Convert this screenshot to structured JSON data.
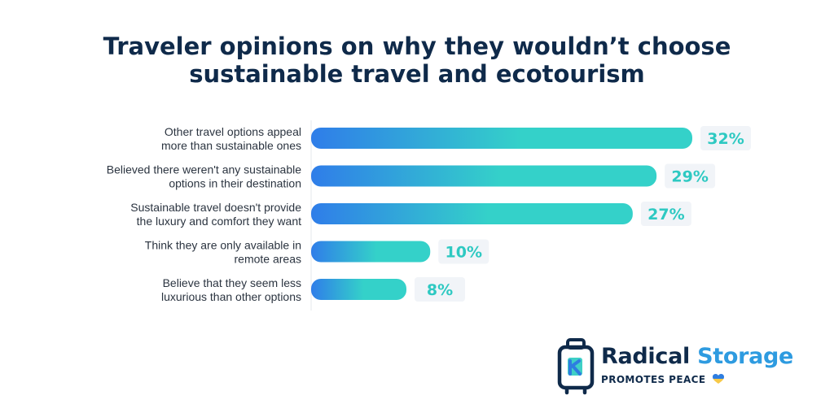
{
  "chart_data": {
    "type": "bar",
    "orientation": "horizontal",
    "title_lines": [
      "Traveler opinions on why they wouldn’t choose",
      "sustainable travel and ecotourism"
    ],
    "categories": [
      [
        "Other travel options appeal",
        "more than sustainable ones"
      ],
      [
        "Believed there weren't any sustainable",
        "options in their destination"
      ],
      [
        "Sustainable travel doesn't provide",
        "the luxury and comfort they want"
      ],
      [
        "Think they are only available in",
        "remote areas"
      ],
      [
        "Believe that they seem less",
        "luxurious than other options"
      ]
    ],
    "values": [
      32,
      29,
      27,
      10,
      8
    ],
    "value_labels": [
      "32%",
      "29%",
      "27%",
      "10%",
      "8%"
    ],
    "xlim": [
      0,
      32
    ],
    "grid": false,
    "legend": "none",
    "colors": {
      "bar_start": "#2f7de9",
      "bar_end": "#34d1c9",
      "label_text": "#2ec9c2",
      "label_bg": "#f1f4f8"
    }
  },
  "brand": {
    "name_part1": "Radical",
    "name_part2": "Storage",
    "tagline": "PROMOTES PEACE",
    "icon": "luggage-icon",
    "heart_icon": "heart-icon",
    "colors": {
      "dark": "#0f2a4a",
      "blue": "#2e9be0",
      "teal": "#3fd0c6",
      "heart_top": "#2e7de0",
      "heart_bottom": "#f7c948"
    }
  }
}
